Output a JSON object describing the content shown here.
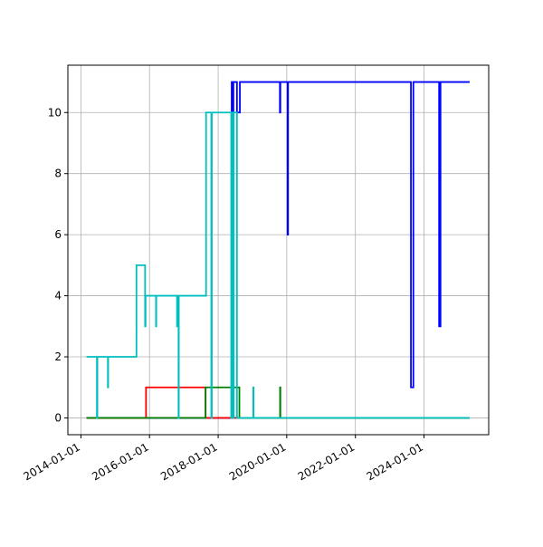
{
  "chart_data": {
    "type": "line",
    "xlim": [
      "2013-08-15",
      "2025-11-20"
    ],
    "xticks": [
      "2014-01-01",
      "2016-01-01",
      "2018-01-01",
      "2020-01-01",
      "2022-01-01",
      "2024-01-01"
    ],
    "ylim": [
      -0.55,
      11.55
    ],
    "yticks": [
      0,
      2,
      4,
      6,
      8,
      10
    ],
    "grid": true,
    "series": [
      {
        "color": "#0000ff",
        "x": [
          "2014-03-01",
          "2018-05-25",
          "2018-05-25",
          "2018-06-05",
          "2018-06-05",
          "2018-06-12",
          "2018-06-12",
          "2018-07-20",
          "2018-07-20",
          "2018-08-20",
          "2018-08-20",
          "2019-10-20",
          "2019-10-20",
          "2019-10-25",
          "2019-10-25",
          "2020-01-10",
          "2020-01-10",
          "2020-01-15",
          "2020-01-15",
          "2023-08-15",
          "2023-08-15",
          "2023-09-10",
          "2023-09-10",
          "2024-06-10",
          "2024-06-10",
          "2024-06-25",
          "2024-06-25",
          "2025-05-01"
        ],
        "values": [
          0,
          0,
          11,
          11,
          0,
          0,
          11,
          11,
          10,
          10,
          11,
          11,
          10,
          10,
          11,
          11,
          6,
          6,
          11,
          11,
          1,
          1,
          11,
          11,
          3,
          3,
          11,
          11
        ]
      },
      {
        "color": "#ff0000",
        "x": [
          "2014-03-01",
          "2015-11-25",
          "2015-11-25",
          "2017-08-20",
          "2017-08-20",
          "2025-05-01"
        ],
        "values": [
          0,
          0,
          1,
          1,
          0,
          0
        ]
      },
      {
        "color": "#008000",
        "x": [
          "2014-03-01",
          "2017-08-20",
          "2017-08-20",
          "2018-08-15",
          "2018-08-15",
          "2019-10-22",
          "2019-10-22",
          "2019-10-25",
          "2019-10-25",
          "2025-05-01"
        ],
        "values": [
          0,
          0,
          1,
          1,
          0,
          0,
          1,
          1,
          0,
          0
        ]
      },
      {
        "color": "#00bfbf",
        "x": [
          "2014-03-01",
          "2014-06-20",
          "2014-06-20",
          "2014-06-25",
          "2014-06-25",
          "2014-10-15",
          "2014-10-15",
          "2014-10-18",
          "2014-10-18",
          "2015-08-15",
          "2015-08-15",
          "2015-11-15",
          "2015-11-15",
          "2015-11-20",
          "2015-11-20",
          "2016-03-10",
          "2016-03-10",
          "2016-03-13",
          "2016-03-13",
          "2016-10-20",
          "2016-10-20",
          "2016-10-25",
          "2016-10-25",
          "2016-11-05",
          "2016-11-05",
          "2016-11-08",
          "2016-11-08",
          "2017-08-25",
          "2017-08-25",
          "2017-10-20",
          "2017-10-20",
          "2017-10-25",
          "2017-10-25",
          "2018-05-20",
          "2018-05-20",
          "2018-05-25",
          "2018-05-25",
          "2018-06-01",
          "2018-06-01",
          "2018-06-05",
          "2018-06-05",
          "2018-06-10",
          "2018-06-10",
          "2018-06-15",
          "2018-06-15",
          "2018-07-20",
          "2018-07-20",
          "2019-01-10",
          "2019-01-10",
          "2019-01-13",
          "2019-01-13",
          "2025-05-01"
        ],
        "values": [
          2,
          2,
          0,
          0,
          2,
          2,
          1,
          1,
          2,
          2,
          5,
          5,
          3,
          3,
          4,
          4,
          3,
          3,
          4,
          4,
          3,
          3,
          4,
          4,
          0,
          0,
          4,
          4,
          10,
          10,
          0,
          0,
          10,
          10,
          0,
          0,
          10,
          10,
          0,
          0,
          10,
          10,
          0,
          0,
          10,
          10,
          0,
          0,
          1,
          1,
          0,
          0
        ]
      }
    ]
  }
}
